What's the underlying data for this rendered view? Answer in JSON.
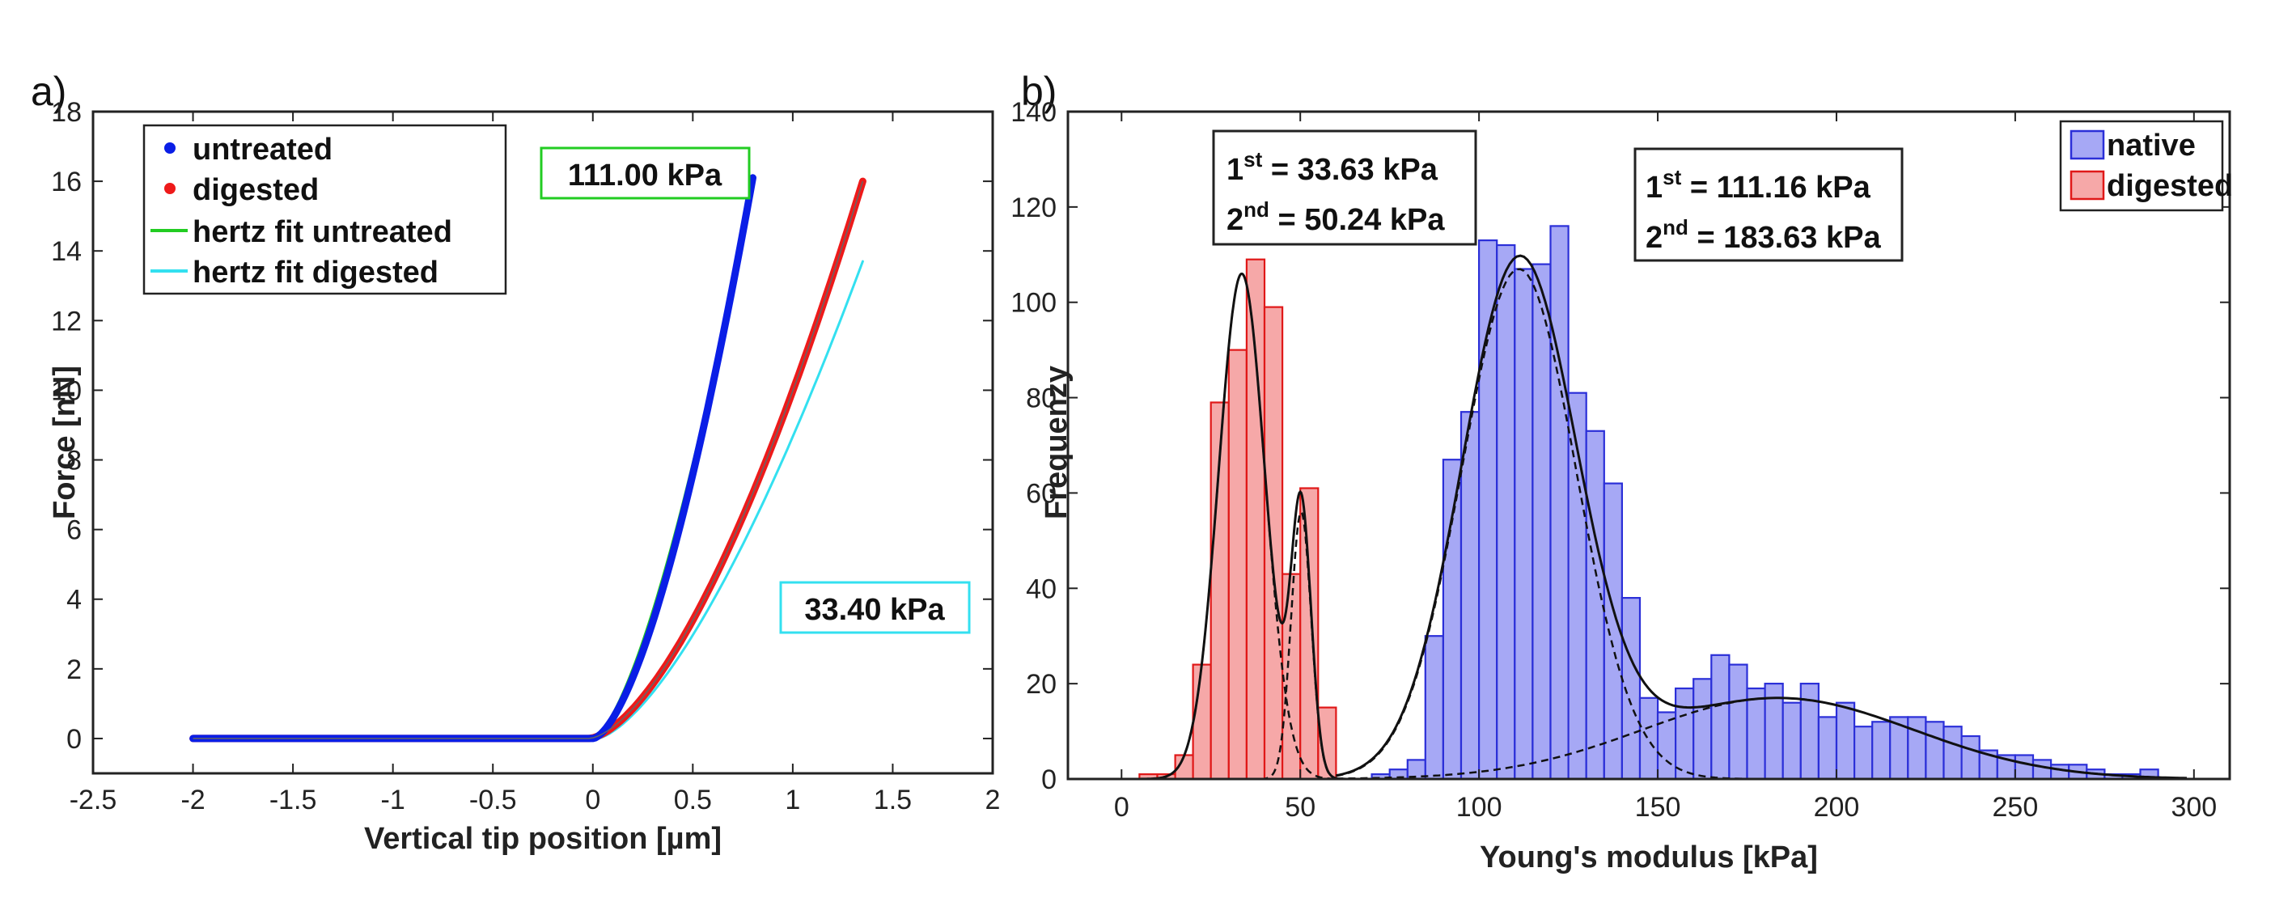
{
  "chart_data": [
    {
      "type": "line",
      "panel_label": "a)",
      "xlabel": "Vertical tip position [µm]",
      "ylabel": "Force [nN]",
      "xlim": [
        -2.5,
        2
      ],
      "ylim": [
        -1,
        18
      ],
      "xticks": [
        "-2.5",
        "-2",
        "-1.5",
        "-1",
        "-0.5",
        "0",
        "0.5",
        "1",
        "1.5",
        "2"
      ],
      "yticks": [
        "0",
        "2",
        "4",
        "6",
        "8",
        "10",
        "12",
        "14",
        "16",
        "18"
      ],
      "colors": {
        "untreated": "#0a1ee6",
        "digested": "#ee1a1a",
        "fit_untreated": "#22cc22",
        "fit_digested": "#33e0f0"
      },
      "series": [
        {
          "name": "untreated",
          "style": "markers",
          "contact_point": 0.0,
          "x_end": 0.8,
          "y_end": 16.1,
          "exponent": 1.6,
          "baseline": 0.0
        },
        {
          "name": "digested",
          "style": "markers",
          "contact_point": -0.02,
          "x_end": 1.35,
          "y_end": 16.0,
          "exponent": 1.6,
          "baseline": 0.0
        },
        {
          "name": "hertz fit untreated",
          "style": "line",
          "contact_point": 0.0,
          "x_end": 0.8,
          "y_end": 16.0,
          "exponent": 1.5
        },
        {
          "name": "hertz fit digested",
          "style": "line",
          "contact_point": 0.02,
          "x_end": 1.35,
          "y_end": 13.7,
          "exponent": 1.5
        }
      ],
      "annotations": [
        {
          "text": "111.00 kPa",
          "box_color": "#22cc22"
        },
        {
          "text": "33.40 kPa",
          "box_color": "#33e0f0"
        }
      ]
    },
    {
      "type": "histogram",
      "panel_label": "b)",
      "xlabel": "Young's modulus [kPa]",
      "ylabel": "Frequenzy",
      "xlim": [
        -15,
        310
      ],
      "ylim": [
        0,
        140
      ],
      "xticks": [
        "0",
        "50",
        "100",
        "150",
        "200",
        "250",
        "300"
      ],
      "yticks": [
        "0",
        "20",
        "40",
        "60",
        "80",
        "100",
        "120",
        "140"
      ],
      "bin_width": 5,
      "colors": {
        "native_fill": "#a6a8f5",
        "native_edge": "#2b2fd8",
        "digested_fill": "#f6a8a8",
        "digested_edge": "#e01818"
      },
      "series": [
        {
          "name": "native",
          "bins": [
            [
              72.5,
              1
            ],
            [
              77.5,
              2
            ],
            [
              82.5,
              4
            ],
            [
              87.5,
              30
            ],
            [
              92.5,
              67
            ],
            [
              97.5,
              77
            ],
            [
              102.5,
              113
            ],
            [
              107.5,
              112
            ],
            [
              112.5,
              107
            ],
            [
              117.5,
              108
            ],
            [
              122.5,
              116
            ],
            [
              127.5,
              81
            ],
            [
              132.5,
              73
            ],
            [
              137.5,
              62
            ],
            [
              142.5,
              38
            ],
            [
              147.5,
              17
            ],
            [
              152.5,
              14
            ],
            [
              157.5,
              19
            ],
            [
              162.5,
              21
            ],
            [
              167.5,
              26
            ],
            [
              172.5,
              24
            ],
            [
              177.5,
              19
            ],
            [
              182.5,
              20
            ],
            [
              187.5,
              16
            ],
            [
              192.5,
              20
            ],
            [
              197.5,
              13
            ],
            [
              202.5,
              16
            ],
            [
              207.5,
              11
            ],
            [
              212.5,
              12
            ],
            [
              217.5,
              13
            ],
            [
              222.5,
              13
            ],
            [
              227.5,
              12
            ],
            [
              232.5,
              11
            ],
            [
              237.5,
              9
            ],
            [
              242.5,
              6
            ],
            [
              247.5,
              5
            ],
            [
              252.5,
              5
            ],
            [
              257.5,
              4
            ],
            [
              262.5,
              3
            ],
            [
              267.5,
              3
            ],
            [
              272.5,
              2
            ],
            [
              277.5,
              1
            ],
            [
              282.5,
              1
            ],
            [
              287.5,
              2
            ]
          ]
        },
        {
          "name": "digested",
          "bins": [
            [
              7.5,
              1
            ],
            [
              12.5,
              1
            ],
            [
              17.5,
              5
            ],
            [
              22.5,
              24
            ],
            [
              27.5,
              79
            ],
            [
              32.5,
              90
            ],
            [
              37.5,
              109
            ],
            [
              42.5,
              99
            ],
            [
              47.5,
              43
            ],
            [
              52.5,
              61
            ],
            [
              57.5,
              15
            ]
          ]
        }
      ],
      "fits": [
        {
          "name": "digested fit",
          "components": [
            {
              "mu": 33.63,
              "sigma": 6.5,
              "amp": 106
            },
            {
              "mu": 50.24,
              "sigma": 2.8,
              "amp": 56
            }
          ]
        },
        {
          "name": "native fit",
          "components": [
            {
              "mu": 111.16,
              "sigma": 16.0,
              "amp": 107
            },
            {
              "mu": 183.63,
              "sigma": 38.0,
              "amp": 17
            }
          ]
        }
      ],
      "annotations": [
        {
          "first_label": "1",
          "first_sup": "st",
          "first_value": " = 33.63 kPa",
          "second_label": "2",
          "second_sup": "nd",
          "second_value": " = 50.24 kPa"
        },
        {
          "first_label": "1",
          "first_sup": "st",
          "first_value": " = 111.16 kPa",
          "second_label": "2",
          "second_sup": "nd",
          "second_value": " = 183.63 kPa"
        }
      ],
      "legend": [
        "native",
        "digested"
      ]
    }
  ]
}
